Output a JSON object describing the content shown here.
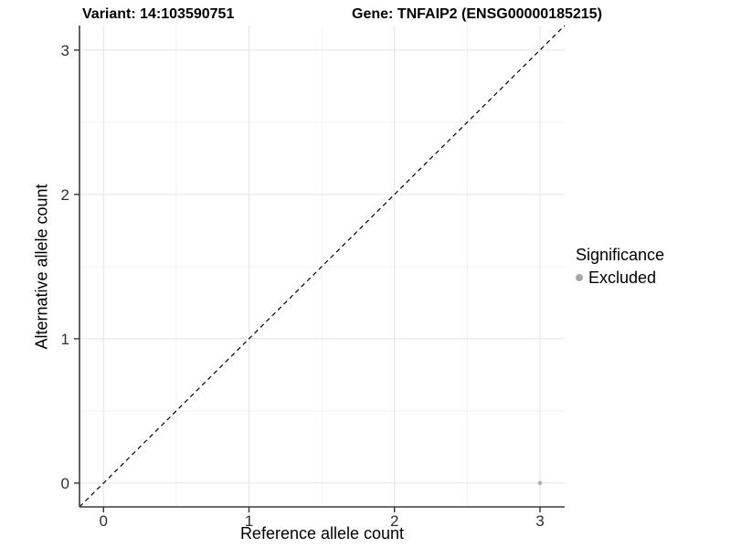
{
  "header": {
    "title_left": "Variant: 14:103590751",
    "title_right": "Gene: TNFAIP2 (ENSG00000185215)"
  },
  "chart_data": {
    "type": "scatter",
    "title": "Variant: 14:103590751 / Gene: TNFAIP2 (ENSG00000185215)",
    "xlabel": "Reference allele count",
    "ylabel": "Alternative allele count",
    "xlim": [
      -0.165,
      3.17
    ],
    "ylim": [
      -0.165,
      3.17
    ],
    "x_ticks": [
      0,
      1,
      2,
      3
    ],
    "y_ticks": [
      0,
      1,
      2,
      3
    ],
    "x_minor_ticks": [
      0.5,
      1.5,
      2.5
    ],
    "y_minor_ticks": [
      0.5,
      1.5,
      2.5
    ],
    "grid": true,
    "identity_line": {
      "type": "abline",
      "slope": 1,
      "intercept": 0,
      "style": "dashed",
      "color": "#000000"
    },
    "series": [
      {
        "name": "Excluded",
        "points": [
          {
            "x": 3,
            "y": 0
          }
        ],
        "color": "#b0b0b0"
      }
    ],
    "legend": {
      "position": "right",
      "title": "Significance",
      "entries": [
        {
          "label": "Excluded",
          "color": "#a8a8a8"
        }
      ]
    }
  },
  "colors": {
    "grid_major": "#e4e4e4",
    "grid_minor": "#f2f2f2",
    "axis_line": "#3c3c3c",
    "tick_mark": "#333333",
    "tick_label": "#303030",
    "point": "#b0b0b0",
    "dashed_line": "#000000",
    "background": "#ffffff"
  }
}
